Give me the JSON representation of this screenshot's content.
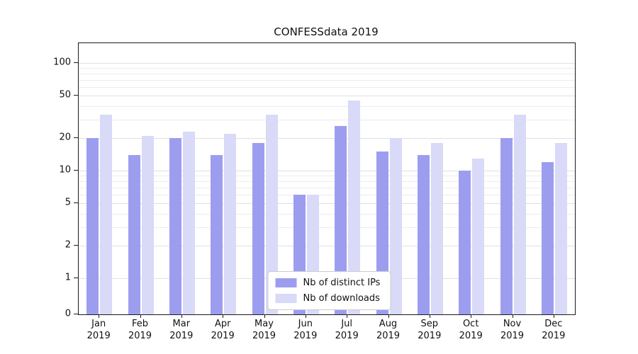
{
  "title": "CONFESSdata 2019",
  "colors": {
    "axis": "#1a1a1a",
    "grid_major": "#e0e0e0",
    "grid_minor": "#ececec",
    "background": "#ffffff"
  },
  "legend": {
    "items": [
      {
        "label": "Nb of distinct IPs"
      },
      {
        "label": "Nb of downloads"
      }
    ]
  },
  "chart_data": {
    "type": "bar",
    "title": "CONFESSdata 2019",
    "categories": [
      "Jan 2019",
      "Feb 2019",
      "Mar 2019",
      "Apr 2019",
      "May 2019",
      "Jun 2019",
      "Jul 2019",
      "Aug 2019",
      "Sep 2019",
      "Oct 2019",
      "Nov 2019",
      "Dec 2019"
    ],
    "series": [
      {
        "name": "Nb of distinct IPs",
        "color": "#9d9df0",
        "values": [
          20,
          14,
          20,
          14,
          18,
          6,
          26,
          15,
          14,
          10,
          20,
          12
        ]
      },
      {
        "name": "Nb of downloads",
        "color": "#d9d9f8",
        "values": [
          33,
          21,
          23,
          22,
          33,
          6,
          45,
          20,
          18,
          13,
          33,
          18
        ]
      }
    ],
    "yscale": "symlog",
    "yticks": [
      0,
      1,
      2,
      5,
      10,
      20,
      50,
      100
    ],
    "ylim": [
      0,
      120
    ],
    "xlabel": "",
    "ylabel": "",
    "grid": true,
    "legend_position": "lower center"
  }
}
